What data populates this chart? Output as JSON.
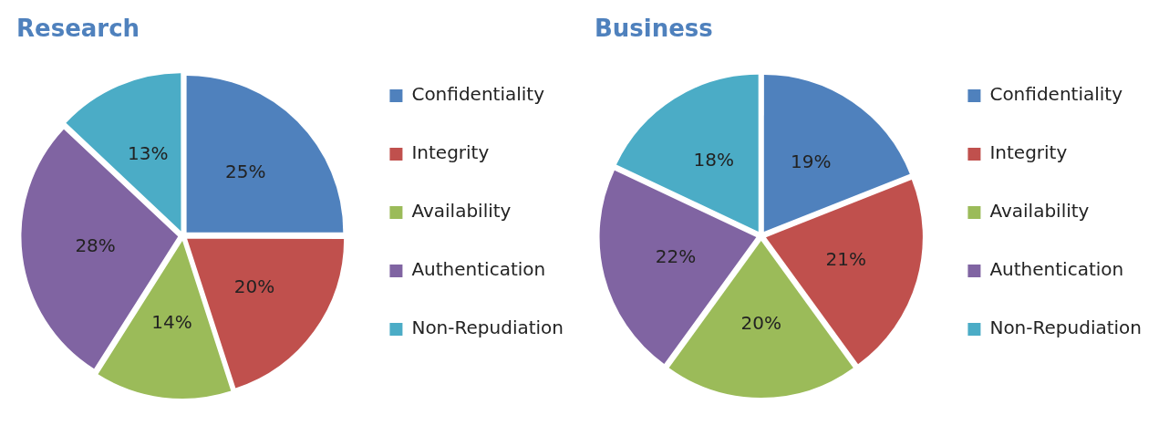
{
  "chart_data": [
    {
      "type": "pie",
      "title": "Research",
      "categories": [
        "Confidentiality",
        "Integrity",
        "Availability",
        "Authentication",
        "Non-Repudiation"
      ],
      "values": [
        25,
        20,
        14,
        28,
        13
      ],
      "value_labels": [
        "25%",
        "20%",
        "14%",
        "28%",
        "13%"
      ],
      "colors": [
        "#4f81bd",
        "#c0504d",
        "#9bbb59",
        "#8064a2",
        "#4bacc6"
      ],
      "legend": "right"
    },
    {
      "type": "pie",
      "title": "Business",
      "categories": [
        "Confidentiality",
        "Integrity",
        "Availability",
        "Authentication",
        "Non-Repudiation"
      ],
      "values": [
        19,
        21,
        20,
        22,
        18
      ],
      "value_labels": [
        "19%",
        "21%",
        "20%",
        "22%",
        "18%"
      ],
      "colors": [
        "#4f81bd",
        "#c0504d",
        "#9bbb59",
        "#8064a2",
        "#4bacc6"
      ],
      "legend": "right"
    }
  ]
}
